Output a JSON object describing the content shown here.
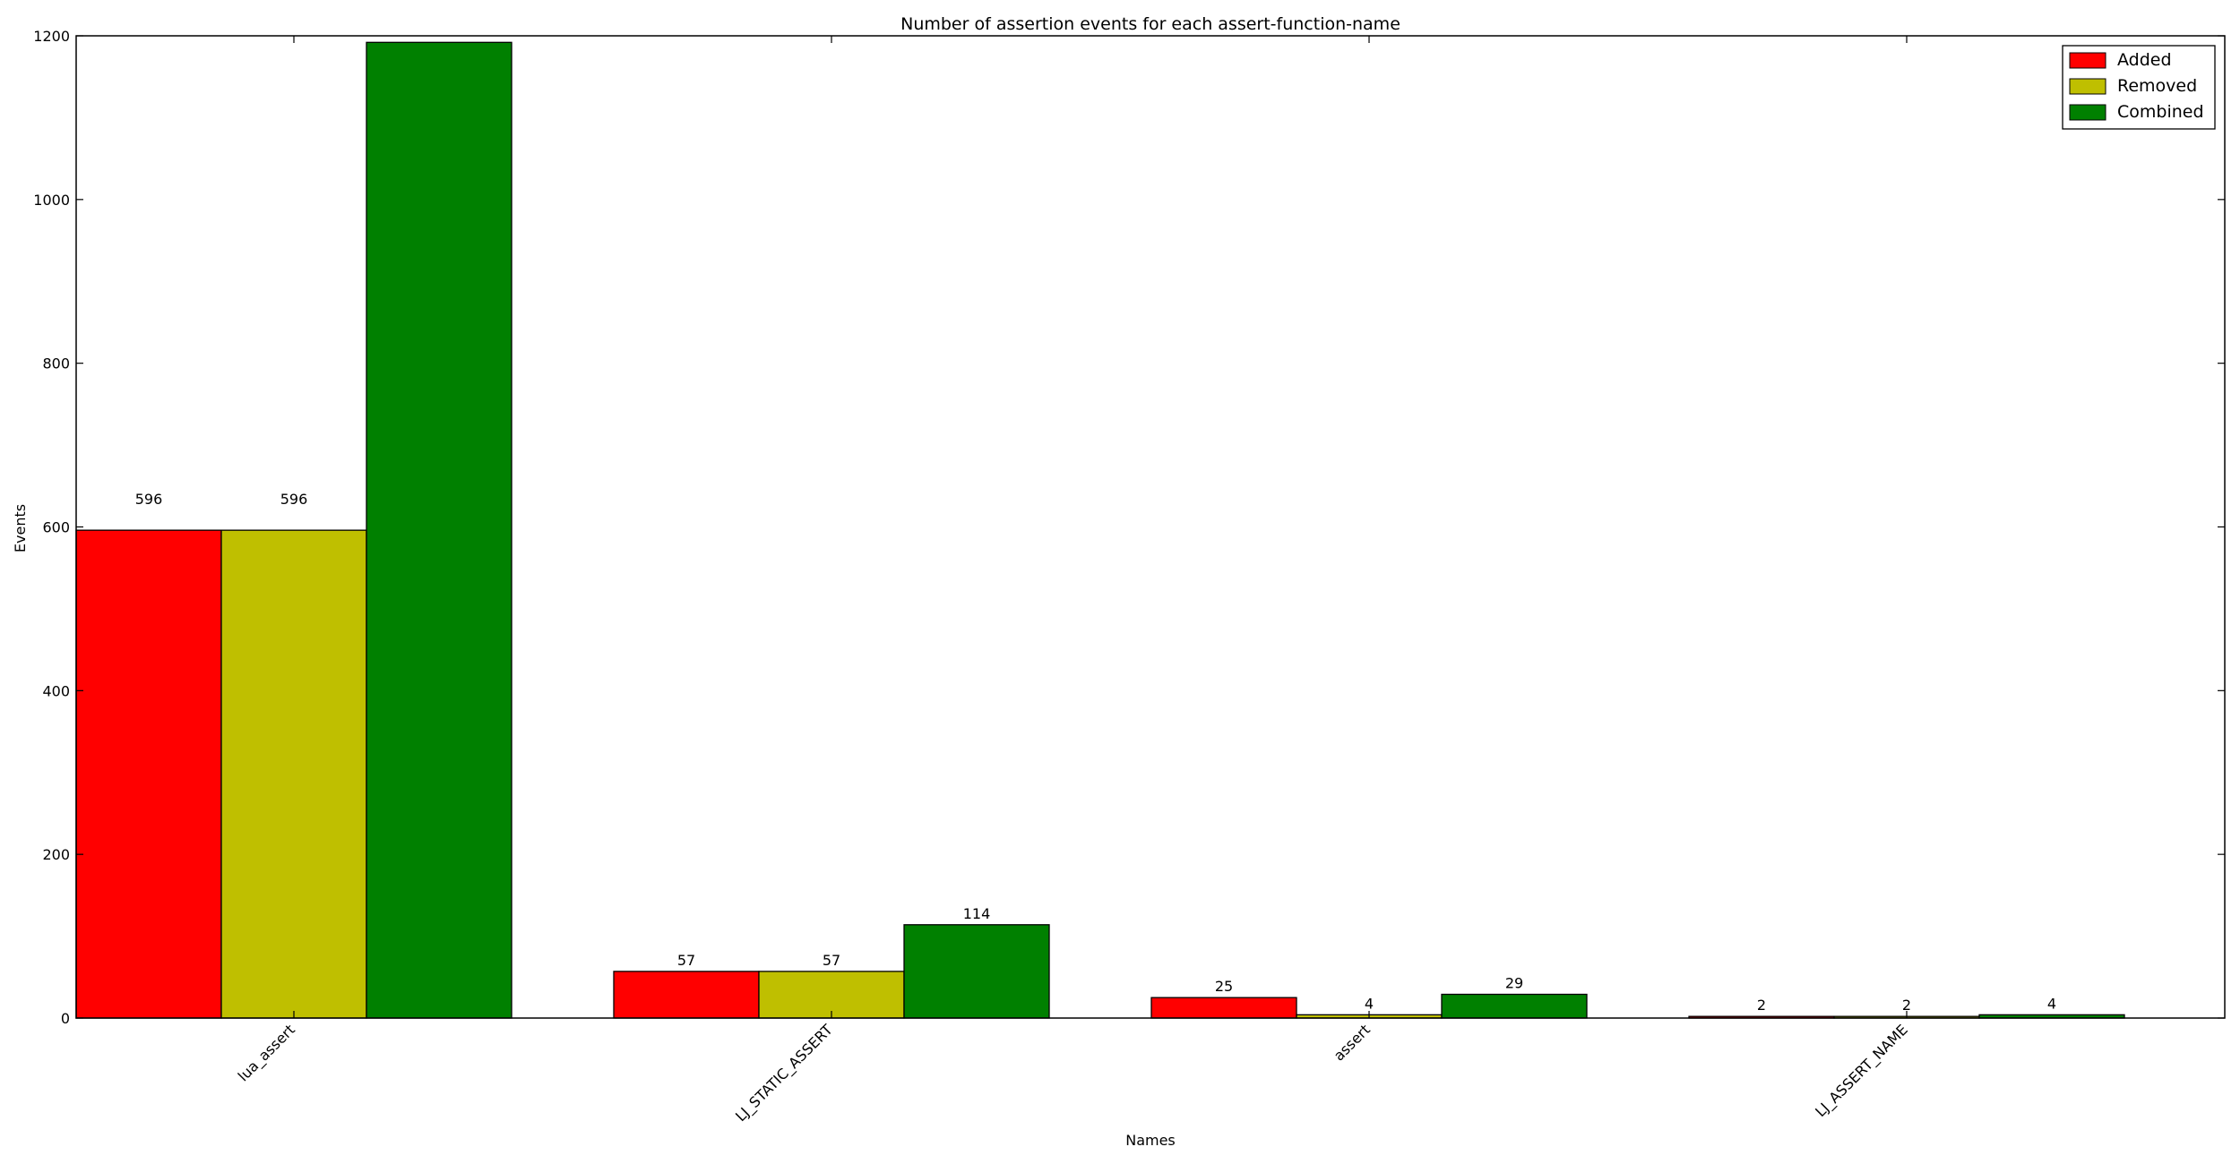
{
  "chart_data": {
    "type": "bar",
    "title": "Number of assertion events for each assert-function-name",
    "xlabel": "Names",
    "ylabel": "Events",
    "categories": [
      "lua_assert",
      "LJ_STATIC_ASSERT",
      "assert",
      "LJ_ASSERT_NAME"
    ],
    "series": [
      {
        "name": "Added",
        "color": "#ff0000",
        "values": [
          596,
          57,
          25,
          2
        ],
        "labels": [
          "596",
          "57",
          "25",
          "2"
        ]
      },
      {
        "name": "Removed",
        "color": "#bfbf00",
        "values": [
          596,
          57,
          4,
          2
        ],
        "labels": [
          "596",
          "57",
          "4",
          "2"
        ]
      },
      {
        "name": "Combined",
        "color": "#008000",
        "values": [
          1192,
          114,
          29,
          4
        ],
        "labels": [
          "",
          "114",
          "29",
          "4"
        ]
      }
    ],
    "ylim": [
      0,
      1200
    ],
    "yticks": [
      "0",
      "200",
      "400",
      "600",
      "800",
      "1000",
      "1200"
    ],
    "grid": false,
    "legend_position": "top-right"
  }
}
